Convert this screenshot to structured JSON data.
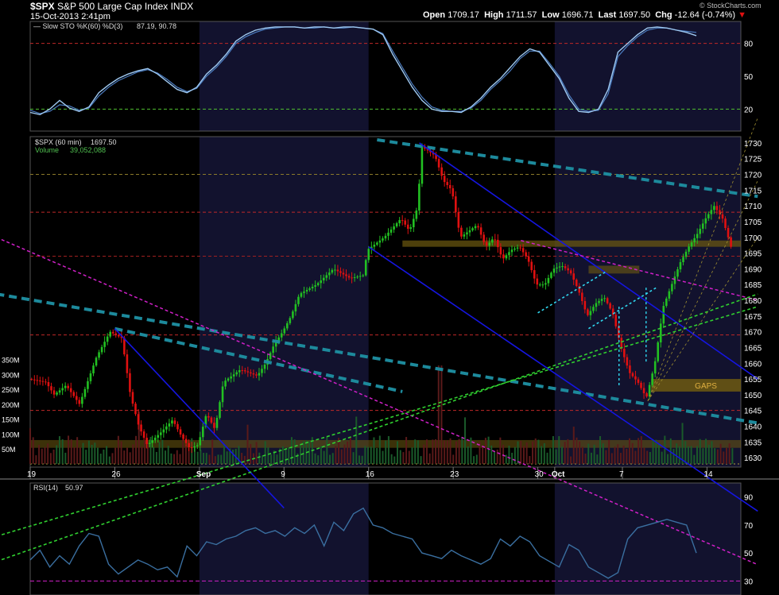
{
  "header": {
    "symbol": "$SPX",
    "name": "S&P 500 Large Cap Index",
    "exchange": "INDX",
    "datetime": "15-Oct-2013 2:41pm",
    "open_label": "Open",
    "open": "1709.17",
    "high_label": "High",
    "high": "1711.57",
    "low_label": "Low",
    "low": "1696.71",
    "last_label": "Last",
    "last": "1697.50",
    "chg_label": "Chg",
    "chg": "-12.64 (-0.74%)",
    "watermark": "© StockCharts.com"
  },
  "colors": {
    "background": "#000000",
    "shade": "#12122e",
    "price_up": "#22c022",
    "price_down": "#e01010",
    "indicator": "#9ec8f0",
    "trend_blue": "#1515e0",
    "trend_teal": "#1d8a9c",
    "trend_magenta": "#d020c8",
    "trend_green": "#30d030",
    "trend_cyan": "#30d8f0",
    "gaps": "#6e5a10"
  },
  "chart_data": [
    {
      "type": "line",
      "panel": "stochastic",
      "legend": "Slow STO %K(60) %D(3)",
      "legend_values": [
        "87.19",
        "90.78"
      ],
      "y_ticks": [
        20,
        50,
        80
      ],
      "ylim": [
        0,
        100
      ],
      "reference_lines": [
        80,
        20
      ],
      "k_values": [
        17,
        15,
        20,
        28,
        21,
        18,
        22,
        35,
        42,
        48,
        52,
        55,
        57,
        52,
        45,
        38,
        35,
        40,
        52,
        60,
        70,
        82,
        88,
        92,
        94,
        95,
        95,
        95,
        94,
        95,
        95,
        94,
        95,
        95,
        94,
        93,
        88,
        70,
        55,
        40,
        28,
        20,
        18,
        18,
        17,
        22,
        30,
        40,
        48,
        58,
        68,
        75,
        72,
        60,
        48,
        30,
        18,
        17,
        20,
        38,
        72,
        80,
        88,
        94,
        95,
        94,
        92,
        90,
        87
      ],
      "d_values": [
        19,
        16,
        18,
        24,
        23,
        19,
        21,
        32,
        40,
        46,
        50,
        54,
        56,
        53,
        47,
        40,
        36,
        39,
        50,
        58,
        68,
        80,
        86,
        90,
        93,
        94,
        95,
        95,
        94,
        94,
        95,
        94,
        94,
        95,
        94,
        93,
        89,
        73,
        58,
        43,
        31,
        22,
        19,
        18,
        18,
        21,
        28,
        38,
        46,
        55,
        66,
        73,
        73,
        62,
        50,
        33,
        20,
        18,
        19,
        34,
        68,
        78,
        86,
        92,
        94,
        94,
        92,
        91,
        90
      ]
    },
    {
      "type": "candlestick",
      "panel": "price",
      "legend": "$SPX (60 min)",
      "legend_value": "1697.50",
      "volume_legend": "Volume",
      "volume_value": "39,052,088",
      "y_ticks": [
        1630,
        1635,
        1640,
        1645,
        1650,
        1655,
        1660,
        1665,
        1670,
        1675,
        1680,
        1685,
        1690,
        1695,
        1700,
        1705,
        1710,
        1715,
        1720,
        1725,
        1730
      ],
      "ylim": [
        1627,
        1732
      ],
      "volume_ticks": [
        "50M",
        "100M",
        "150M",
        "200M",
        "250M",
        "300M",
        "350M"
      ],
      "volume_tick_values": [
        50,
        100,
        150,
        200,
        250,
        300,
        350
      ],
      "volume_max": 410,
      "x_ticks": [
        "19",
        "26",
        "Sep",
        "9",
        "16",
        "23",
        "30",
        "Oct",
        "7",
        "14"
      ],
      "x_tick_positions": [
        0,
        5,
        10,
        15,
        20,
        25,
        30,
        31,
        35,
        40
      ],
      "x_range": [
        0,
        42
      ],
      "close_path": [
        [
          0,
          1655
        ],
        [
          1,
          1654
        ],
        [
          1.5,
          1650
        ],
        [
          2.2,
          1653
        ],
        [
          3,
          1647
        ],
        [
          4,
          1662
        ],
        [
          4.8,
          1670
        ],
        [
          5.5,
          1668
        ],
        [
          6,
          1650
        ],
        [
          6.5,
          1640
        ],
        [
          7,
          1634
        ],
        [
          7.8,
          1638
        ],
        [
          8.5,
          1642
        ],
        [
          9,
          1637
        ],
        [
          9.5,
          1633
        ],
        [
          10,
          1634
        ],
        [
          10.5,
          1644
        ],
        [
          11,
          1639
        ],
        [
          11.5,
          1654
        ],
        [
          12.5,
          1658
        ],
        [
          13.5,
          1656
        ],
        [
          14,
          1660
        ],
        [
          14.5,
          1666
        ],
        [
          15,
          1670
        ],
        [
          15.5,
          1675
        ],
        [
          16,
          1682
        ],
        [
          17,
          1685
        ],
        [
          18,
          1690
        ],
        [
          19,
          1687
        ],
        [
          19.8,
          1688
        ],
        [
          20,
          1696
        ],
        [
          21,
          1700
        ],
        [
          21.5,
          1703
        ],
        [
          22,
          1706
        ],
        [
          22.5,
          1702
        ],
        [
          23,
          1710
        ],
        [
          23.2,
          1729
        ],
        [
          24,
          1726
        ],
        [
          24.5,
          1718
        ],
        [
          25,
          1715
        ],
        [
          25.5,
          1700
        ],
        [
          26,
          1702
        ],
        [
          26.5,
          1704
        ],
        [
          27,
          1697
        ],
        [
          27.5,
          1700
        ],
        [
          28,
          1693
        ],
        [
          28.5,
          1696
        ],
        [
          29,
          1697
        ],
        [
          29.5,
          1693
        ],
        [
          30,
          1685
        ],
        [
          30.5,
          1685
        ],
        [
          31,
          1690
        ],
        [
          31.5,
          1691
        ],
        [
          32,
          1689
        ],
        [
          32.5,
          1683
        ],
        [
          33,
          1675
        ],
        [
          33.5,
          1679
        ],
        [
          34,
          1681
        ],
        [
          34.5,
          1676
        ],
        [
          35,
          1665
        ],
        [
          35.5,
          1657
        ],
        [
          36,
          1654
        ],
        [
          36.5,
          1649
        ],
        [
          37,
          1660
        ],
        [
          37.5,
          1678
        ],
        [
          38,
          1685
        ],
        [
          38.5,
          1692
        ],
        [
          39,
          1697
        ],
        [
          39.5,
          1701
        ],
        [
          40,
          1706
        ],
        [
          40.5,
          1710
        ],
        [
          41,
          1706
        ],
        [
          41.5,
          1697
        ]
      ],
      "horizontal_levels": [
        1720,
        1708,
        1694,
        1669,
        1645
      ],
      "annotations": [
        {
          "text": "GAPS",
          "range": [
            1651,
            1655
          ],
          "x_range": [
            36.7,
            42
          ]
        }
      ],
      "trendlines": [
        {
          "color": "teal",
          "x": [
            20.5,
            43
          ],
          "y": [
            1731,
            1713
          ]
        },
        {
          "color": "teal",
          "x": [
            -2,
            43
          ],
          "y": [
            1682,
            1641
          ]
        },
        {
          "color": "teal",
          "x": [
            5,
            22
          ],
          "y": [
            1671,
            1651
          ]
        },
        {
          "color": "blue",
          "x": [
            23,
            43
          ],
          "y": [
            1730,
            1655
          ]
        },
        {
          "color": "blue",
          "x": [
            20,
            43
          ],
          "y": [
            1697,
            1613
          ]
        },
        {
          "color": "blue",
          "x": [
            5,
            15
          ],
          "y": [
            1671,
            1614
          ]
        },
        {
          "color": "magenta",
          "x": [
            -2,
            43
          ],
          "y": [
            1700,
            1596
          ]
        },
        {
          "color": "magenta",
          "x": [
            29,
            43
          ],
          "y": [
            1699,
            1680
          ]
        },
        {
          "color": "green",
          "x": [
            -2,
            43
          ],
          "y": [
            1597,
            1682
          ]
        },
        {
          "color": "green",
          "x": [
            -2,
            43
          ],
          "y": [
            1605,
            1678
          ]
        },
        {
          "color": "cyan",
          "x": [
            30,
            34
          ],
          "y": [
            1676,
            1689
          ]
        },
        {
          "color": "cyan",
          "x": [
            33,
            37
          ],
          "y": [
            1671,
            1684
          ]
        }
      ]
    },
    {
      "type": "line",
      "panel": "rsi",
      "legend": "RSI(14)",
      "legend_value": "50.97",
      "y_ticks": [
        30,
        50,
        70,
        90
      ],
      "ylim": [
        20,
        100
      ],
      "reference_lines": [
        30
      ],
      "values": [
        45,
        52,
        40,
        48,
        42,
        55,
        64,
        62,
        42,
        35,
        40,
        45,
        42,
        38,
        40,
        33,
        55,
        48,
        58,
        56,
        60,
        62,
        66,
        68,
        64,
        66,
        62,
        68,
        64,
        70,
        55,
        72,
        66,
        78,
        82,
        70,
        68,
        64,
        62,
        60,
        50,
        48,
        46,
        52,
        48,
        45,
        42,
        46,
        60,
        55,
        62,
        58,
        48,
        44,
        40,
        56,
        52,
        40,
        36,
        32,
        36,
        60,
        68,
        70,
        72,
        74,
        72,
        70,
        50
      ]
    }
  ]
}
